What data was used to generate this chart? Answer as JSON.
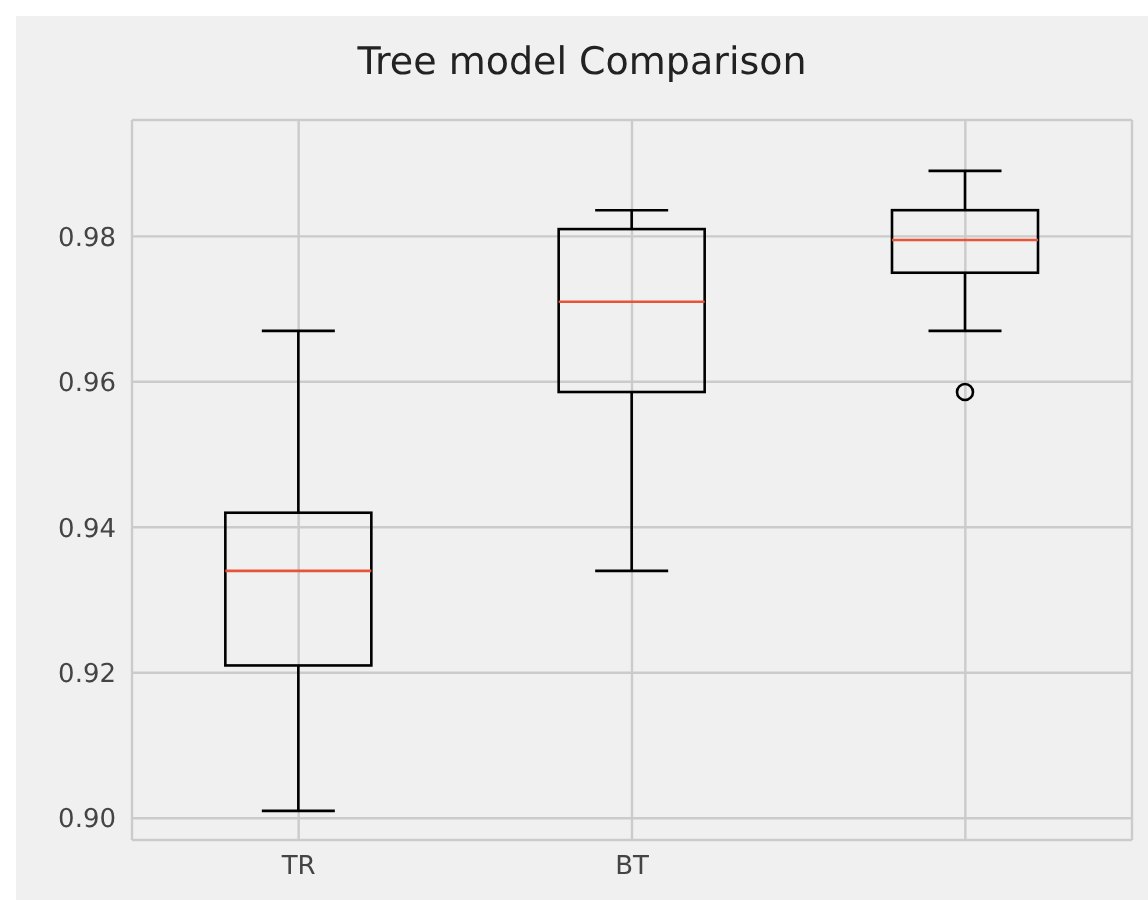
{
  "chart_data": {
    "type": "box",
    "title": "Tree model Comparison",
    "categories": [
      "TR",
      "BT",
      null
    ],
    "color": "#000000",
    "boxes": [
      {
        "low": 0.901,
        "q1": 0.921,
        "median": 0.934,
        "q3": 0.942,
        "high": 0.967
      },
      {
        "low": 0.934,
        "q1": 0.9586,
        "median": 0.971,
        "q3": 0.981,
        "high": 0.9836
      },
      {
        "low": 0.967,
        "q1": 0.975,
        "median": 0.9795,
        "q3": 0.9836,
        "high": 0.989,
        "outliers": [
          0.9586
        ]
      }
    ],
    "ylim": [
      0.897,
      0.996
    ],
    "yticks": [
      {
        "value": 0.9,
        "label": "0.90"
      },
      0.92,
      0.94,
      0.96,
      0.98
    ],
    "grid": true
  }
}
